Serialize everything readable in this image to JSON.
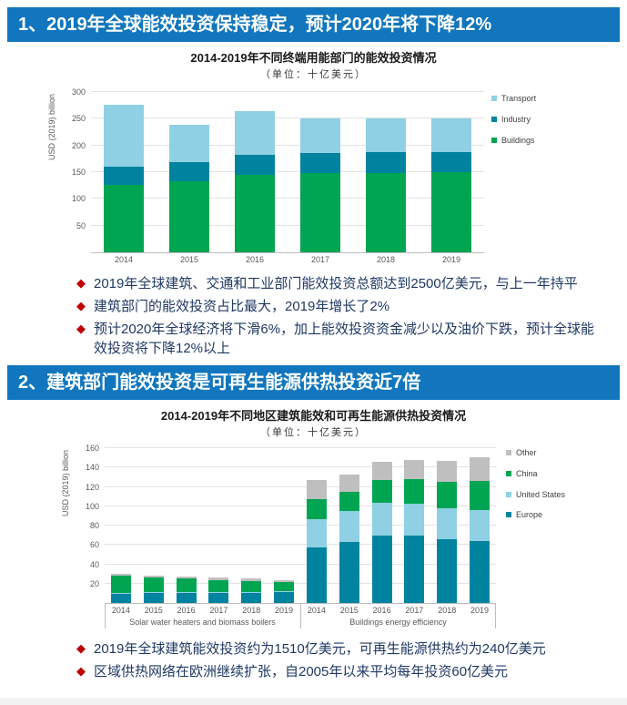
{
  "bullet_marker": "◆",
  "colors": {
    "header_bg": "#1176BE",
    "bullet_diamond": "#C00000",
    "bullet_text": "#1F3864",
    "buildings_green": "#00A551",
    "industry_teal": "#00839E",
    "transport_lightblue": "#8FD0E4",
    "other_gray": "#BFBFBF"
  },
  "sections": [
    {
      "header": "1、2019年全球能效投资保持稳定，预计2020年将下降12%",
      "bullets": [
        "2019年全球建筑、交通和工业部门能效投资总额达到2500亿美元，与上一年持平",
        "建筑部门的能效投资占比最大，2019年增长了2%",
        "预计2020年全球经济将下滑6%，加上能效投资资金减少以及油价下跌，预计全球能效投资将下降12%以上"
      ]
    },
    {
      "header": "2、建筑部门能效投资是可再生能源供热投资近7倍",
      "bullets": [
        "2019年全球建筑能效投资约为1510亿美元，可再生能源供热约为240亿美元",
        "区域供热网络在欧洲继续扩张，自2005年以来平均每年投资60亿美元"
      ]
    }
  ],
  "chart_data": [
    {
      "type": "bar",
      "stacked": true,
      "title": "2014-2019年不同终端用能部门的能效投资情况",
      "subtitle": "（单位：十亿美元）",
      "ylabel": "USD (2019) billion",
      "ylim": [
        0,
        300
      ],
      "ytick_step": 50,
      "grid": true,
      "legend_position": "right",
      "categories": [
        "2014",
        "2015",
        "2016",
        "2017",
        "2018",
        "2019"
      ],
      "series": [
        {
          "name": "Buildings",
          "color": "#00A551",
          "values": [
            127,
            133,
            145,
            148,
            148,
            150
          ]
        },
        {
          "name": "Industry",
          "color": "#00839E",
          "values": [
            34,
            35,
            37,
            37,
            40,
            38
          ]
        },
        {
          "name": "Transport",
          "color": "#8FD0E4",
          "values": [
            116,
            70,
            82,
            65,
            63,
            62
          ]
        }
      ],
      "totals": [
        277,
        238,
        264,
        250,
        251,
        250
      ],
      "legend_order": [
        "Transport",
        "Industry",
        "Buildings"
      ]
    },
    {
      "type": "bar",
      "stacked": true,
      "title": "2014-2019年不同地区建筑能效和可再生能源供热投资情况",
      "subtitle": "（单位：十亿美元）",
      "ylabel": "USD (2019) billion",
      "ylim": [
        0,
        160
      ],
      "ytick_step": 20,
      "grid": true,
      "legend_position": "right",
      "groups": [
        {
          "label": "Solar water heaters and biomass boilers",
          "categories": [
            "2014",
            "2015",
            "2016",
            "2017",
            "2018",
            "2019"
          ],
          "series": [
            {
              "name": "Europe",
              "color": "#00839E",
              "values": [
                9,
                10,
                10,
                10,
                10,
                11
              ]
            },
            {
              "name": "United States",
              "color": "#8FD0E4",
              "values": [
                1,
                1,
                1,
                1,
                1,
                1
              ]
            },
            {
              "name": "China",
              "color": "#00A551",
              "values": [
                18,
                15,
                14,
                13,
                12,
                10
              ]
            },
            {
              "name": "Other",
              "color": "#BFBFBF",
              "values": [
                2,
                2,
                2,
                2,
                2,
                2
              ]
            }
          ],
          "totals": [
            30,
            28,
            27,
            26,
            25,
            24
          ]
        },
        {
          "label": "Buildings energy efficiency",
          "categories": [
            "2014",
            "2015",
            "2016",
            "2017",
            "2018",
            "2019"
          ],
          "series": [
            {
              "name": "Europe",
              "color": "#00839E",
              "values": [
                57,
                63,
                70,
                70,
                66,
                64
              ]
            },
            {
              "name": "United States",
              "color": "#8FD0E4",
              "values": [
                30,
                32,
                34,
                33,
                32,
                32
              ]
            },
            {
              "name": "China",
              "color": "#00A551",
              "values": [
                20,
                20,
                23,
                25,
                27,
                30
              ]
            },
            {
              "name": "Other",
              "color": "#BFBFBF",
              "values": [
                20,
                18,
                19,
                20,
                22,
                25
              ]
            }
          ],
          "totals": [
            127,
            133,
            146,
            148,
            147,
            151
          ]
        }
      ],
      "legend_order": [
        "Other",
        "China",
        "United States",
        "Europe"
      ]
    }
  ]
}
